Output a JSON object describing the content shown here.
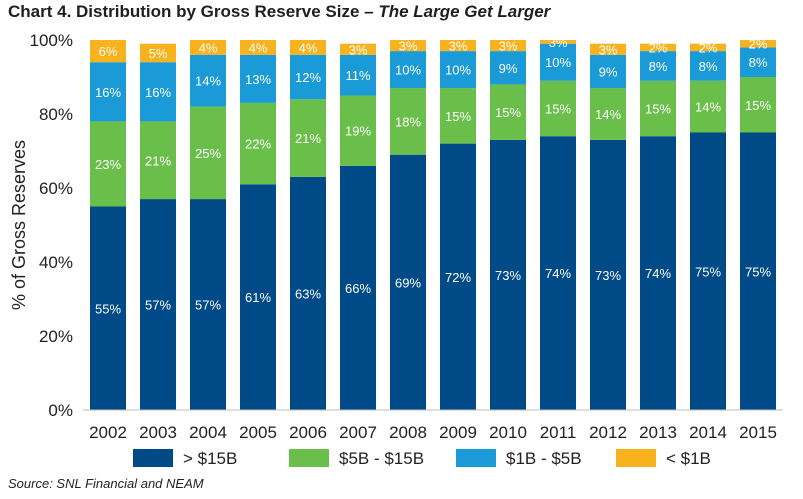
{
  "title_prefix": "Chart 4. Distribution by Gross Reserve Size – ",
  "title_emphasis": "The Large Get Larger",
  "source": "Source: SNL Financial and NEAM",
  "colors": {
    "gt15b": "#004b87",
    "5to15b": "#6abf4b",
    "1to5b": "#1a9ad6",
    "lt1b": "#f7b21d"
  },
  "chart_data": {
    "type": "bar",
    "stacked": true,
    "title": "Chart 4. Distribution by Gross Reserve Size – The Large Get Larger",
    "xlabel": "",
    "ylabel": "% of Gross Reserves",
    "ylim": [
      0,
      100
    ],
    "yticks": [
      "0%",
      "20%",
      "40%",
      "60%",
      "80%",
      "100%"
    ],
    "categories": [
      "2002",
      "2003",
      "2004",
      "2005",
      "2006",
      "2007",
      "2008",
      "2009",
      "2010",
      "2011",
      "2012",
      "2013",
      "2014",
      "2015"
    ],
    "series": [
      {
        "name": "> $15B",
        "color_key": "gt15b",
        "values": [
          55,
          57,
          57,
          61,
          63,
          66,
          69,
          72,
          73,
          74,
          73,
          74,
          75,
          75
        ],
        "labels": [
          "55%",
          "57%",
          "57%",
          "61%",
          "63%",
          "66%",
          "69%",
          "72%",
          "73%",
          "74%",
          "73%",
          "74%",
          "75%",
          "75%"
        ]
      },
      {
        "name": "$5B - $15B",
        "color_key": "5to15b",
        "values": [
          23,
          21,
          25,
          22,
          21,
          19,
          18,
          15,
          15,
          15,
          14,
          15,
          14,
          15
        ],
        "labels": [
          "23%",
          "21%",
          "25%",
          "22%",
          "21%",
          "19%",
          "18%",
          "15%",
          "15%",
          "15%",
          "14%",
          "15%",
          "14%",
          "15%"
        ]
      },
      {
        "name": "$1B - $5B",
        "color_key": "1to5b",
        "values": [
          16,
          16,
          14,
          13,
          12,
          11,
          10,
          10,
          9,
          10,
          9,
          8,
          8,
          8
        ],
        "labels": [
          "16%",
          "16%",
          "14%",
          "13%",
          "12%",
          "11%",
          "10%",
          "10%",
          "9%",
          "10%",
          "9%",
          "8%",
          "8%",
          "8%"
        ]
      },
      {
        "name": "< $1B",
        "color_key": "lt1b",
        "values": [
          6,
          5,
          4,
          4,
          4,
          3,
          3,
          3,
          3,
          3,
          3,
          2,
          2,
          2
        ],
        "labels": [
          "6%",
          "5%",
          "4%",
          "4%",
          "4%",
          "3%",
          "3%",
          "3%",
          "3%",
          "3%",
          "3%",
          "2%",
          "2%",
          "2%"
        ]
      }
    ],
    "legend_position": "bottom"
  }
}
